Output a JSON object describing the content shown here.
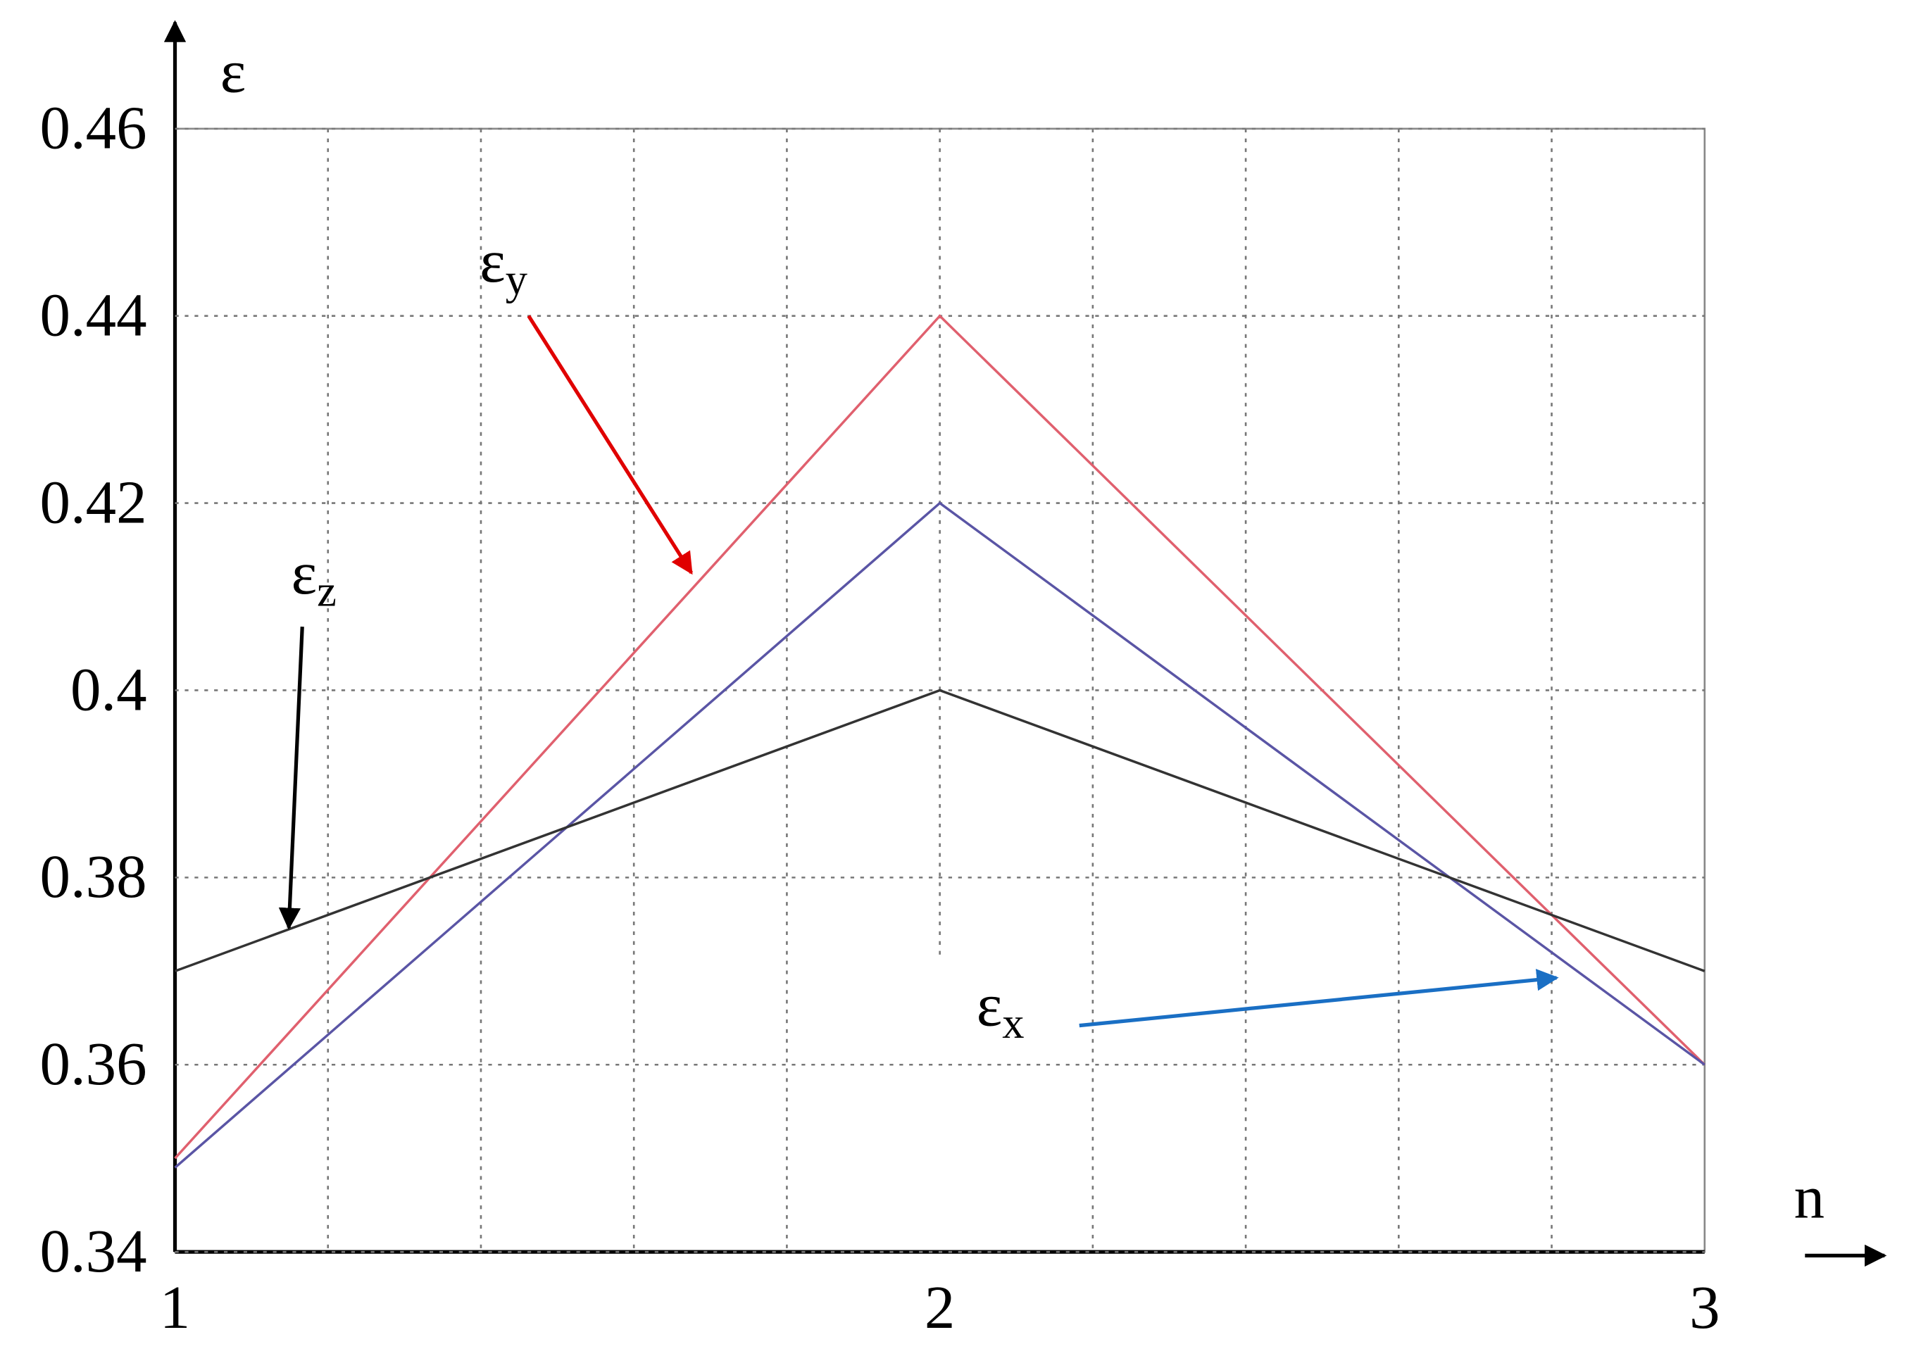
{
  "chart_data": {
    "type": "line",
    "y_label": "ε",
    "x_label": "n",
    "x": [
      1,
      2,
      3
    ],
    "series": [
      {
        "name": "εy",
        "color": "#e0606e",
        "values": [
          0.35,
          0.44,
          0.36
        ]
      },
      {
        "name": "εx",
        "color": "#5a55a5",
        "values": [
          0.349,
          0.42,
          0.36
        ]
      },
      {
        "name": "εz",
        "color": "#333333",
        "values": [
          0.37,
          0.4,
          0.37
        ]
      }
    ],
    "annotations": [
      {
        "label": "ε",
        "sub": "y",
        "color": "#e00000"
      },
      {
        "label": "ε",
        "sub": "z",
        "color": "#000000"
      },
      {
        "label": "ε",
        "sub": "x",
        "color": "#1a6fc4"
      }
    ],
    "xlim": [
      1,
      3
    ],
    "xticks": [
      1,
      2,
      3
    ],
    "xminor": [
      1.2,
      1.4,
      1.6,
      1.8,
      2.2,
      2.4,
      2.6,
      2.8
    ],
    "ylim": [
      0.34,
      0.46
    ],
    "yticks": [
      0.34,
      0.36,
      0.38,
      0.4,
      0.42,
      0.44,
      0.46
    ],
    "grid": true
  }
}
